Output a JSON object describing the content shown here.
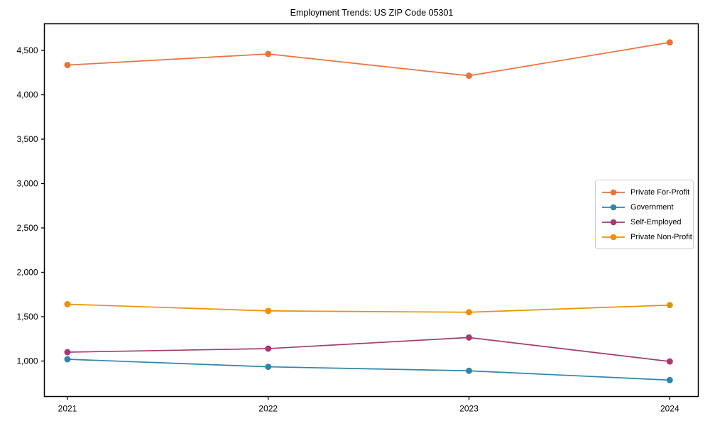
{
  "chart_data": {
    "type": "line",
    "title": "Employment Trends: US ZIP Code 05301",
    "xlabel": "",
    "ylabel": "",
    "x": [
      2021,
      2022,
      2023,
      2024
    ],
    "x_tick_labels": [
      "2021",
      "2022",
      "2023",
      "2024"
    ],
    "y_tick_values": [
      1000,
      1500,
      2000,
      2500,
      3000,
      3500,
      4000,
      4500
    ],
    "y_tick_labels": [
      "1,000",
      "1,500",
      "2,000",
      "2,500",
      "3,000",
      "3,500",
      "4,000",
      "4,500"
    ],
    "ylim": [
      600,
      4800
    ],
    "grid": "off",
    "legend_position": "center-right",
    "series": [
      {
        "name": "Private For-Profit",
        "color": "#E8743B",
        "values": [
          4335,
          4460,
          4215,
          4590
        ]
      },
      {
        "name": "Government",
        "color": "#2E86AB",
        "values": [
          1020,
          935,
          890,
          785
        ]
      },
      {
        "name": "Self-Employed",
        "color": "#A23B72",
        "values": [
          1100,
          1140,
          1265,
          995
        ]
      },
      {
        "name": "Private Non-Profit",
        "color": "#F18F01",
        "values": [
          1640,
          1565,
          1550,
          1630
        ]
      }
    ],
    "axis_color": "#000000",
    "text_color": "#000000"
  }
}
